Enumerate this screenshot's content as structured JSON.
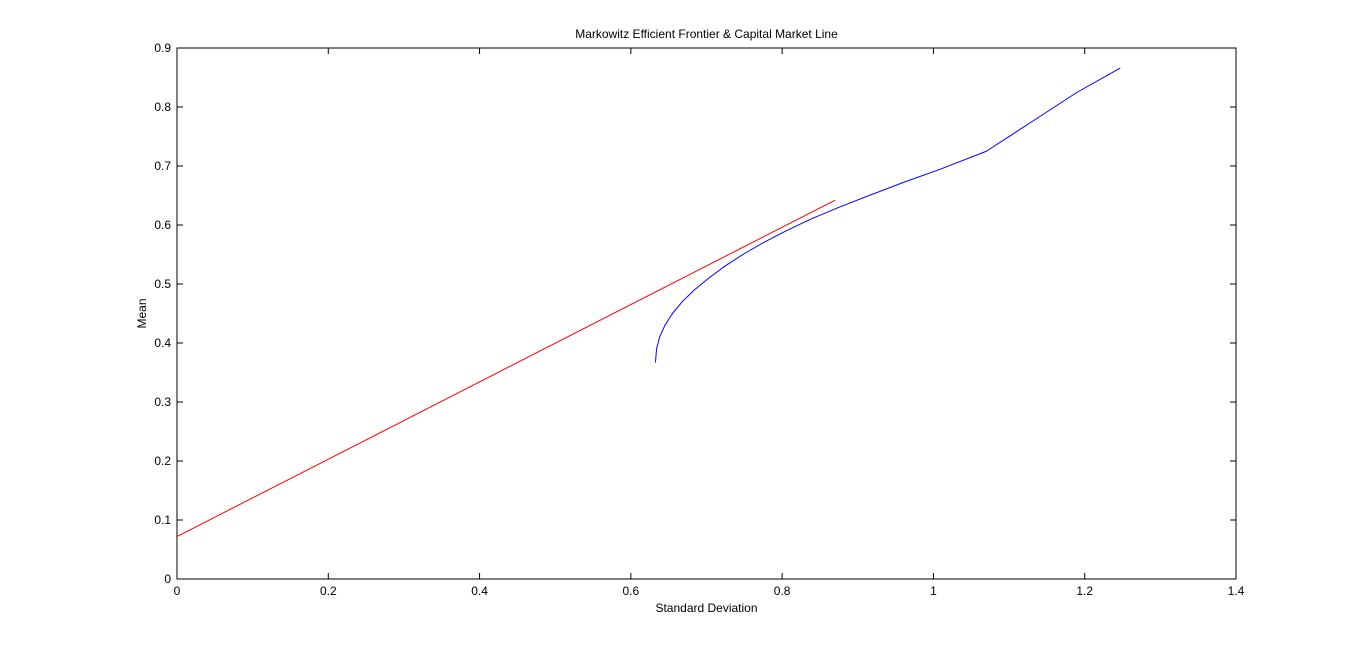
{
  "chart_data": {
    "type": "line",
    "title": "Markowitz Efficient Frontier & Capital Market Line",
    "xlabel": "Standard Deviation",
    "ylabel": "Mean",
    "xlim": [
      0,
      1.4
    ],
    "ylim": [
      0,
      0.9
    ],
    "x_ticks": [
      "0",
      "0.2",
      "0.4",
      "0.6",
      "0.8",
      "1",
      "1.2",
      "1.4"
    ],
    "y_ticks": [
      "0",
      "0.1",
      "0.2",
      "0.3",
      "0.4",
      "0.5",
      "0.6",
      "0.7",
      "0.8",
      "0.9"
    ],
    "grid": false,
    "legend": "none",
    "series": [
      {
        "color": "#ff0000",
        "x": [
          0,
          0.87
        ],
        "y": [
          0.072,
          0.642
        ]
      },
      {
        "color": "#0000ff",
        "x": [
          0.6325,
          0.634,
          0.638,
          0.645,
          0.655,
          0.668,
          0.684,
          0.703,
          0.724,
          0.748,
          0.775,
          0.805,
          0.838,
          0.875,
          0.915,
          0.96,
          1.01,
          1.07,
          1.13,
          1.19,
          1.247
        ],
        "y": [
          0.367,
          0.39,
          0.41,
          0.43,
          0.45,
          0.47,
          0.49,
          0.51,
          0.53,
          0.55,
          0.57,
          0.59,
          0.61,
          0.63,
          0.65,
          0.672,
          0.695,
          0.725,
          0.775,
          0.825,
          0.866
        ]
      }
    ]
  }
}
